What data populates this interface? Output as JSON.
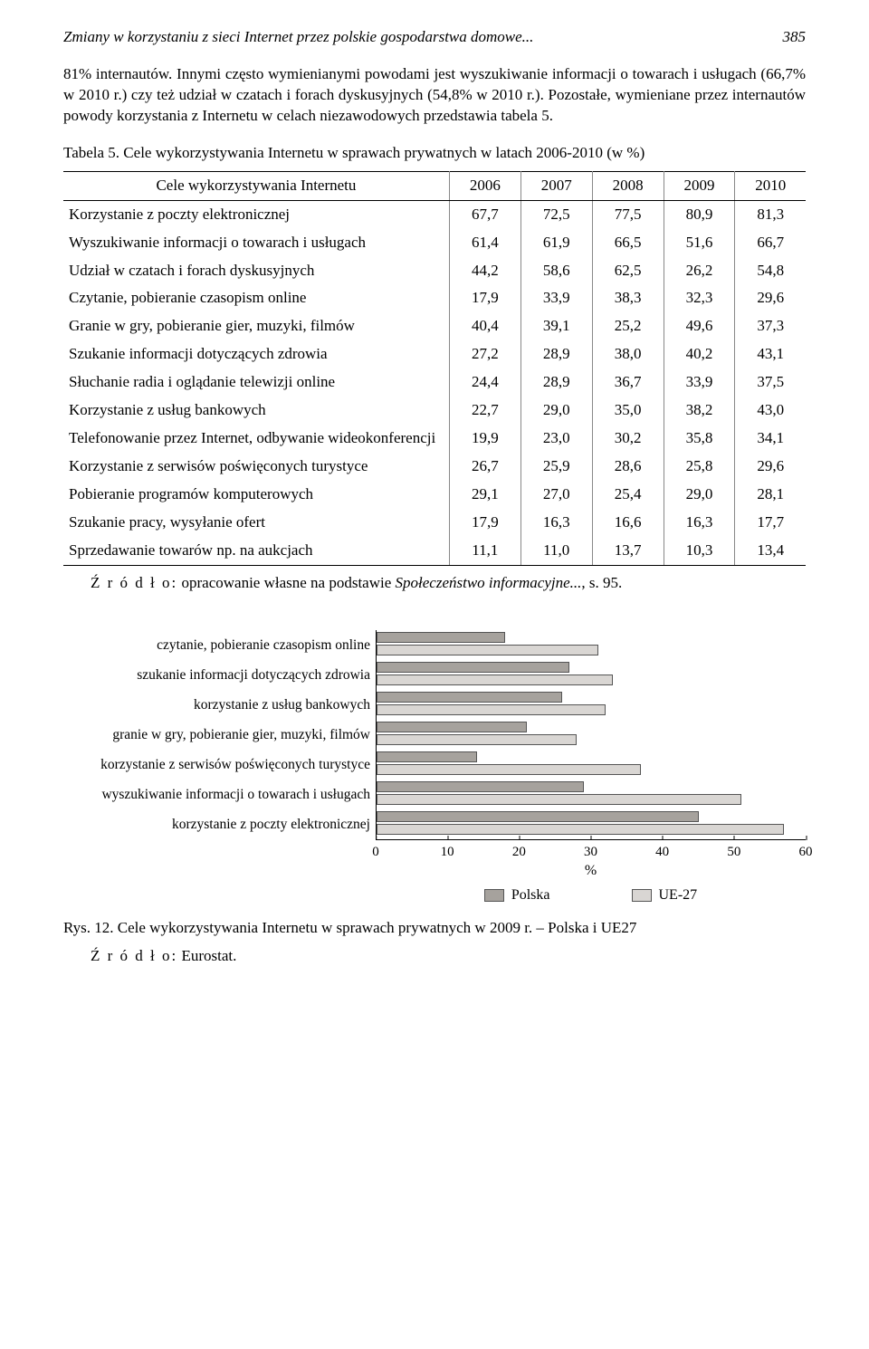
{
  "header": {
    "running_title": "Zmiany w korzystaniu z sieci Internet przez polskie gospodarstwa domowe...",
    "page_number": "385"
  },
  "paragraph": "81% internautów. Innymi często wymienianymi powodami jest wyszukiwanie informacji o towarach i usługach (66,7% w 2010 r.) czy też udział w czatach i forach dyskusyjnych (54,8% w 2010 r.). Pozostałe, wymieniane przez internautów powody korzystania z Internetu w celach niezawodowych przedstawia tabela 5.",
  "table": {
    "caption": "Tabela 5. Cele wykorzystywania Internetu w sprawach prywatnych w latach 2006-2010 (w %)",
    "header": [
      "Cele wykorzystywania Internetu",
      "2006",
      "2007",
      "2008",
      "2009",
      "2010"
    ],
    "rows": [
      [
        "Korzystanie z poczty elektronicznej",
        "67,7",
        "72,5",
        "77,5",
        "80,9",
        "81,3"
      ],
      [
        "Wyszukiwanie informacji o towarach i usługach",
        "61,4",
        "61,9",
        "66,5",
        "51,6",
        "66,7"
      ],
      [
        "Udział w czatach i forach dyskusyjnych",
        "44,2",
        "58,6",
        "62,5",
        "26,2",
        "54,8"
      ],
      [
        "Czytanie, pobieranie czasopism online",
        "17,9",
        "33,9",
        "38,3",
        "32,3",
        "29,6"
      ],
      [
        "Granie w gry, pobieranie gier, muzyki, filmów",
        "40,4",
        "39,1",
        "25,2",
        "49,6",
        "37,3"
      ],
      [
        "Szukanie informacji dotyczących zdrowia",
        "27,2",
        "28,9",
        "38,0",
        "40,2",
        "43,1"
      ],
      [
        "Słuchanie radia i oglądanie telewizji online",
        "24,4",
        "28,9",
        "36,7",
        "33,9",
        "37,5"
      ],
      [
        "Korzystanie z usług bankowych",
        "22,7",
        "29,0",
        "35,0",
        "38,2",
        "43,0"
      ],
      [
        "Telefonowanie przez Internet, odbywanie wideokonferencji",
        "19,9",
        "23,0",
        "30,2",
        "35,8",
        "34,1"
      ],
      [
        "Korzystanie z serwisów poświęconych turystyce",
        "26,7",
        "25,9",
        "28,6",
        "25,8",
        "29,6"
      ],
      [
        "Pobieranie programów komputerowych",
        "29,1",
        "27,0",
        "25,4",
        "29,0",
        "28,1"
      ],
      [
        "Szukanie pracy, wysyłanie ofert",
        "17,9",
        "16,3",
        "16,6",
        "16,3",
        "17,7"
      ],
      [
        "Sprzedawanie towarów np. na aukcjach",
        "11,1",
        "11,0",
        "13,7",
        "10,3",
        "13,4"
      ]
    ],
    "source_label": "Ź r ó d ł o:",
    "source_text_plain": " opracowanie własne na podstawie ",
    "source_text_italic": "Społeczeństwo informacyjne...",
    "source_text_tail": ", s. 95."
  },
  "chart": {
    "type": "bar",
    "x_max": 60,
    "x_ticks": [
      0,
      10,
      20,
      30,
      40,
      50,
      60
    ],
    "x_label": "%",
    "series_names": [
      "Polska",
      "UE-27"
    ],
    "colors": {
      "poland": "#a6a29d",
      "eu": "#d9d6d3",
      "border": "#555555",
      "axis": "#000000"
    },
    "categories": [
      {
        "label": "czytanie, pobieranie czasopism online",
        "poland": 18,
        "eu": 31
      },
      {
        "label": "szukanie informacji dotyczących zdrowia",
        "poland": 27,
        "eu": 33
      },
      {
        "label": "korzystanie z usług bankowych",
        "poland": 26,
        "eu": 32
      },
      {
        "label": "granie w gry, pobieranie gier, muzyki, filmów",
        "poland": 21,
        "eu": 28
      },
      {
        "label": "korzystanie z serwisów poświęconych turystyce",
        "poland": 14,
        "eu": 37
      },
      {
        "label": "wyszukiwanie informacji o towarach i usługach",
        "poland": 29,
        "eu": 51
      },
      {
        "label": "korzystanie z poczty elektronicznej",
        "poland": 45,
        "eu": 57
      }
    ],
    "legend": {
      "poland": "Polska",
      "eu": "UE-27"
    }
  },
  "figure": {
    "caption": "Rys. 12. Cele wykorzystywania Internetu w sprawach prywatnych w 2009 r. – Polska i UE27",
    "source_label": "Ź r ó d ł o:",
    "source_text": " Eurostat."
  }
}
